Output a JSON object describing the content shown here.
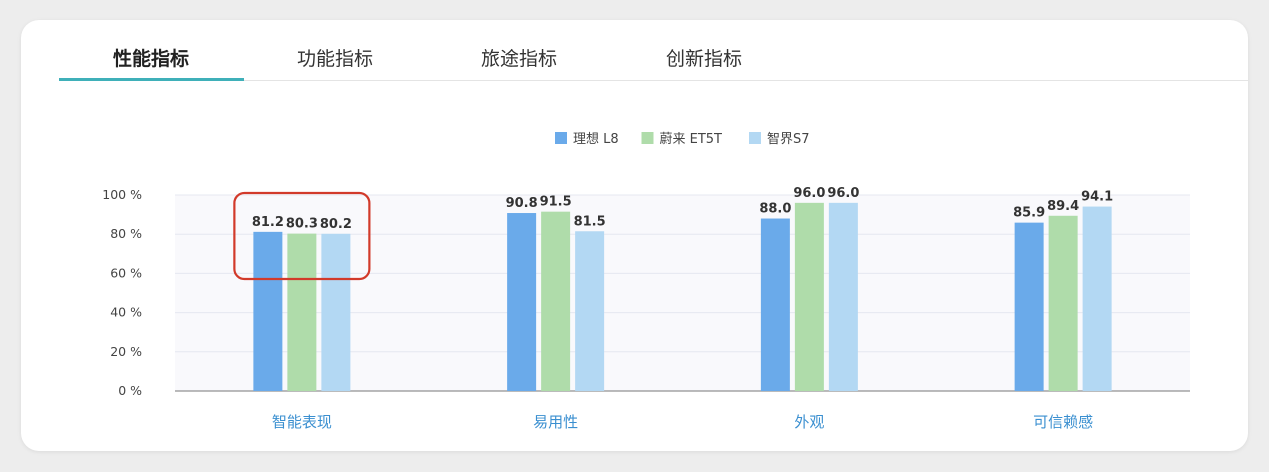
{
  "tabs": [
    {
      "label": "性能指标",
      "active": true
    },
    {
      "label": "功能指标",
      "active": false
    },
    {
      "label": "旅途指标",
      "active": false
    },
    {
      "label": "创新指标",
      "active": false
    }
  ],
  "chart_data": {
    "type": "bar",
    "categories": [
      "智能表现",
      "易用性",
      "外观",
      "可信赖感"
    ],
    "series": [
      {
        "name": "理想 L8",
        "color": "#6aaaea",
        "values": [
          81.2,
          90.8,
          88.0,
          85.9
        ]
      },
      {
        "name": "蔚来 ET5T",
        "color": "#afdcaa",
        "values": [
          80.3,
          91.5,
          96.0,
          89.4
        ]
      },
      {
        "name": "智界S7",
        "color": "#b3d8f3",
        "values": [
          80.2,
          81.5,
          96.0,
          94.1
        ]
      }
    ],
    "yticks": [
      "0 %",
      "20 %",
      "40 %",
      "60 %",
      "80 %",
      "100 %"
    ],
    "ylim": [
      0,
      100
    ],
    "grid": true,
    "legend_position": "top-center",
    "highlight_category": "智能表现",
    "highlight_color": "#d23a2a"
  }
}
